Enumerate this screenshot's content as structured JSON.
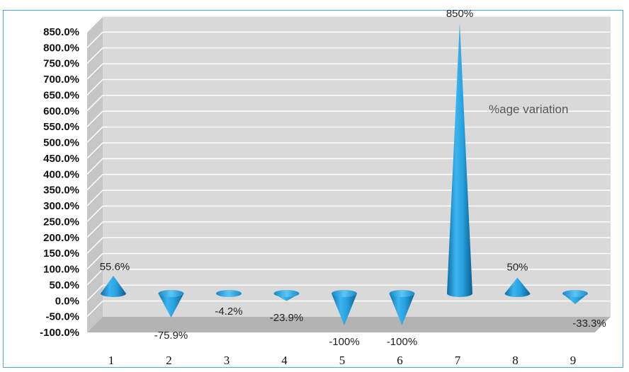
{
  "chart_data": {
    "type": "bar",
    "subtype": "3d-cone",
    "categories": [
      "1",
      "2",
      "3",
      "4",
      "5",
      "6",
      "7",
      "8",
      "9"
    ],
    "series": [
      {
        "name": "%age variation",
        "values": [
          55.6,
          -75.9,
          -4.2,
          -23.9,
          -100,
          -100,
          850,
          50,
          -33.3
        ],
        "data_labels": [
          "55.6%",
          "-75.9%",
          "-4.2%",
          "-23.9%",
          "-100%",
          "-100%",
          "850%",
          "50%",
          "-33.3%"
        ],
        "color": "#29a3e0"
      }
    ],
    "y_ticks": [
      "850.0%",
      "800.0%",
      "750.0%",
      "700.0%",
      "650.0%",
      "600.0%",
      "550.0%",
      "500.0%",
      "450.0%",
      "400.0%",
      "350.0%",
      "300.0%",
      "250.0%",
      "200.0%",
      "150.0%",
      "100.0%",
      "50.0%",
      "0.0%",
      "-50.0%",
      "-100.0%"
    ],
    "ylim": [
      -100,
      850
    ],
    "grid": true,
    "colors": {
      "wall": "#d9d9d9",
      "floor": "#b3b3b3",
      "grid": "#ffffff",
      "border": "#4aa6d8"
    }
  }
}
